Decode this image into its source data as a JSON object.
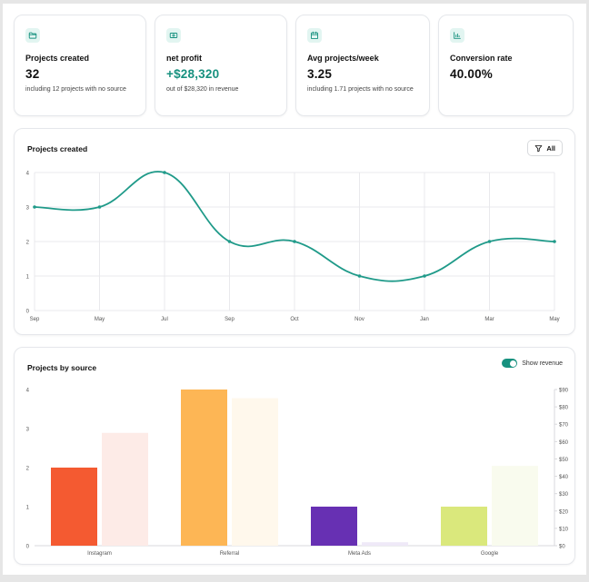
{
  "stats": [
    {
      "icon": "folder-icon",
      "title": "Projects created",
      "value": "32",
      "note": "including 12 projects with no source",
      "accent": false
    },
    {
      "icon": "banknote-icon",
      "title": "net profit",
      "value": "+$28,320",
      "note": "out of $28,320 in revenue",
      "accent": true
    },
    {
      "icon": "calendar-icon",
      "title": "Avg projects/week",
      "value": "3.25",
      "note": "including 1.71 projects with no source",
      "accent": false
    },
    {
      "icon": "bar-chart-icon",
      "title": "Conversion rate",
      "value": "40.00%",
      "note": "",
      "accent": false
    }
  ],
  "projects_panel": {
    "title": "Projects created",
    "filter_label": "All"
  },
  "source_panel": {
    "title": "Projects by source",
    "toggle_label": "Show revenue",
    "toggle_on": true
  },
  "colors": {
    "accent": "#17917f",
    "line": "#1f9a89",
    "grid": "#e9e9ec",
    "axis_text": "#555555"
  },
  "chart_data": [
    {
      "type": "line",
      "title": "Projects created",
      "x": [
        "Sep",
        "May",
        "Jul",
        "Sep",
        "Oct",
        "Nov",
        "Jan",
        "Mar",
        "May"
      ],
      "series": [
        {
          "values": [
            3,
            3,
            4,
            2,
            2,
            1,
            1,
            2,
            2
          ]
        }
      ],
      "ylim": [
        0,
        4
      ],
      "yticks": [
        "0",
        "1",
        "2",
        "3",
        "4"
      ],
      "grid": true,
      "curve": "smooth"
    },
    {
      "type": "bar",
      "title": "Projects by source",
      "categories": [
        "Instagram",
        "Referral",
        "Meta Ads",
        "Google"
      ],
      "series": [
        {
          "values": [
            2,
            4,
            1,
            1
          ],
          "colors": [
            "#f45a31",
            "#fdb655",
            "#6730b3",
            "#dae87c"
          ],
          "axis": "left"
        },
        {
          "values": [
            65,
            85,
            2,
            46
          ],
          "colors": [
            "#fdebe7",
            "#fff8ec",
            "#efe9f8",
            "#f9fbee"
          ],
          "axis": "right"
        }
      ],
      "ylim": [
        0,
        4
      ],
      "yticks": [
        "0",
        "1",
        "2",
        "3",
        "4"
      ],
      "y2lim": [
        0,
        90
      ],
      "y2ticks": [
        "$0",
        "$10",
        "$20",
        "$30",
        "$40",
        "$50",
        "$60",
        "$70",
        "$80",
        "$90"
      ],
      "grid": false
    }
  ]
}
